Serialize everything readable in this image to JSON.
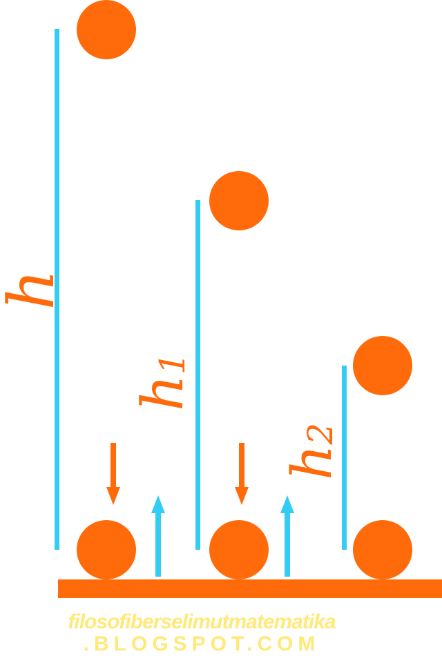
{
  "labels": {
    "h": {
      "base": "h",
      "sub": ""
    },
    "h1": {
      "base": "h",
      "sub": "1"
    },
    "h2": {
      "base": "h",
      "sub": "2"
    }
  },
  "watermark": {
    "line1": "filosofiberselimutmatematika",
    "line2": ".BLOGSPOT.COM"
  },
  "colors": {
    "ball": "#ff6a0a",
    "height_line": "#33ccf4",
    "floor": "#ff6a0a",
    "watermark": "#ffe97a"
  }
}
